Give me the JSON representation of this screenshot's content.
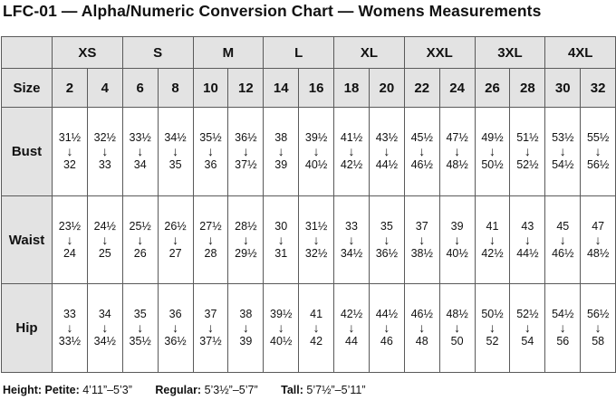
{
  "title": "LFC-01 — Alpha/Numeric Conversion Chart — Womens Measurements",
  "alpha_sizes": [
    "XS",
    "S",
    "M",
    "L",
    "XL",
    "XXL",
    "3XL",
    "4XL"
  ],
  "size_row": {
    "label": "Size",
    "values": [
      "2",
      "4",
      "6",
      "8",
      "10",
      "12",
      "14",
      "16",
      "18",
      "20",
      "22",
      "24",
      "26",
      "28",
      "30",
      "32"
    ]
  },
  "arrow": "↓",
  "rows": [
    {
      "label": "Bust",
      "from": [
        "31½",
        "32½",
        "33½",
        "34½",
        "35½",
        "36½",
        "38",
        "39½",
        "41½",
        "43½",
        "45½",
        "47½",
        "49½",
        "51½",
        "53½",
        "55½"
      ],
      "to": [
        "32",
        "33",
        "34",
        "35",
        "36",
        "37½",
        "39",
        "40½",
        "42½",
        "44½",
        "46½",
        "48½",
        "50½",
        "52½",
        "54½",
        "56½"
      ]
    },
    {
      "label": "Waist",
      "from": [
        "23½",
        "24½",
        "25½",
        "26½",
        "27½",
        "28½",
        "30",
        "31½",
        "33",
        "35",
        "37",
        "39",
        "41",
        "43",
        "45",
        "47"
      ],
      "to": [
        "24",
        "25",
        "26",
        "27",
        "28",
        "29½",
        "31",
        "32½",
        "34½",
        "36½",
        "38½",
        "40½",
        "42½",
        "44½",
        "46½",
        "48½"
      ]
    },
    {
      "label": "Hip",
      "from": [
        "33",
        "34",
        "35",
        "36",
        "37",
        "38",
        "39½",
        "41",
        "42½",
        "44½",
        "46½",
        "48½",
        "50½",
        "52½",
        "54½",
        "56½"
      ],
      "to": [
        "33½",
        "34½",
        "35½",
        "36½",
        "37½",
        "39",
        "40½",
        "42",
        "44",
        "46",
        "48",
        "50",
        "52",
        "54",
        "56",
        "58"
      ]
    }
  ],
  "footer": {
    "height_label": "Height:",
    "petite_label": "Petite:",
    "petite_value": "4’11”–5’3”",
    "regular_label": "Regular:",
    "regular_value": "5’3½”–5’7”",
    "tall_label": "Tall:",
    "tall_value": "5’7½”–5’11”"
  }
}
